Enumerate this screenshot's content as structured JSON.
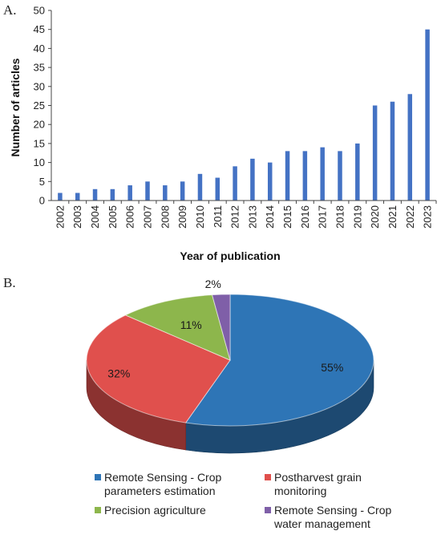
{
  "panels": {
    "a_label": "A.",
    "b_label": "B."
  },
  "chart_data": [
    {
      "type": "bar",
      "title": "",
      "xlabel": "Year of publication",
      "ylabel": "Number of articles",
      "categories": [
        "2002",
        "2003",
        "2004",
        "2005",
        "2006",
        "2007",
        "2008",
        "2009",
        "2010",
        "2011",
        "2012",
        "2013",
        "2014",
        "2015",
        "2016",
        "2017",
        "2018",
        "2019",
        "2020",
        "2021",
        "2022",
        "2023"
      ],
      "values": [
        2,
        2,
        3,
        3,
        4,
        5,
        4,
        5,
        7,
        6,
        9,
        11,
        10,
        13,
        13,
        14,
        13,
        15,
        25,
        26,
        28,
        45
      ],
      "ylim": [
        0,
        50
      ],
      "yticks": [
        0,
        5,
        10,
        15,
        20,
        25,
        30,
        35,
        40,
        45,
        50
      ],
      "grid": false,
      "color": "#4472C4"
    },
    {
      "type": "pie",
      "title": "",
      "style": "3d",
      "slices": [
        {
          "label": "Remote Sensing - Crop parameters estimation",
          "legend_lines": [
            "Remote Sensing - Crop",
            "parameters estimation"
          ],
          "value": 55,
          "display": "55%",
          "color": "#2E75B6"
        },
        {
          "label": "Postharvest grain monitoring",
          "legend_lines": [
            "Postharvest grain",
            "monitoring"
          ],
          "value": 32,
          "display": "32%",
          "color": "#E0504D"
        },
        {
          "label": "Precision agriculture",
          "legend_lines": [
            "Precision agriculture"
          ],
          "value": 11,
          "display": "11%",
          "color": "#8DB64C"
        },
        {
          "label": "Remote Sensing - Crop water management",
          "legend_lines": [
            "Remote Sensing - Crop",
            "water management"
          ],
          "value": 2,
          "display": "2%",
          "color": "#7F5FA8"
        }
      ],
      "legend_placement": "bottom"
    }
  ]
}
